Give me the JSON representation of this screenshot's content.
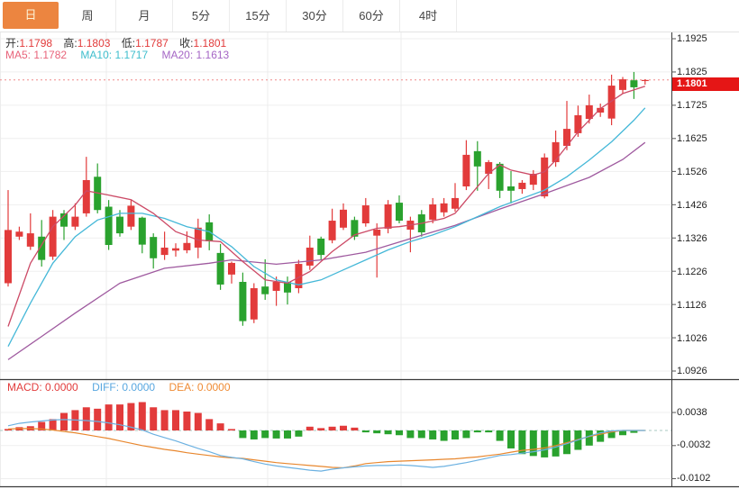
{
  "tabbar": {
    "tabs": [
      {
        "label": "日",
        "active": true
      },
      {
        "label": "周",
        "active": false
      },
      {
        "label": "月",
        "active": false
      },
      {
        "label": "5分",
        "active": false
      },
      {
        "label": "15分",
        "active": false
      },
      {
        "label": "30分",
        "active": false
      },
      {
        "label": "60分",
        "active": false
      },
      {
        "label": "4时",
        "active": false
      }
    ]
  },
  "info": {
    "open_label": "开:",
    "open": "1.1798",
    "high_label": "高:",
    "high": "1.1803",
    "low_label": "低:",
    "low": "1.1787",
    "close_label": "收:",
    "close": "1.1801"
  },
  "ma_info": {
    "ma5_label": "MA5:",
    "ma5": "1.1782",
    "ma10_label": "MA10:",
    "ma10": "1.1717",
    "ma20_label": "MA20:",
    "ma20": "1.1613"
  },
  "macd_info": {
    "macd_label": "MACD:",
    "macd": "0.0000",
    "diff_label": "DIFF:",
    "diff": "0.0000",
    "dea_label": "DEA:",
    "dea": "0.0000"
  },
  "price_axis": {
    "labels": [
      "1.1925",
      "1.1825",
      "1.1725",
      "1.1625",
      "1.1526",
      "1.1426",
      "1.1326",
      "1.1226",
      "1.1126",
      "1.1026",
      "1.0926"
    ],
    "last_price": "1.1801"
  },
  "macd_axis": {
    "labels": [
      "0.0038",
      "-0.0032",
      "-0.0102"
    ]
  },
  "colors": {
    "up": "#e23b3b",
    "down": "#2aa22e",
    "ma5_line": "#cc4a66",
    "ma10_line": "#45b8d8",
    "ma20_line": "#9f5a9f",
    "diff_line": "#6cb1e1",
    "dea_line": "#e8872e",
    "grid": "#efefef",
    "vgrid": "#ececec",
    "axis": "#3a3a3a",
    "tick": "#555555",
    "current_price_line": "#ef8a8a",
    "zero_dash": "#a8c8c0",
    "tab_accent": "#ec8540",
    "badge_bg": "#e51616"
  },
  "chart_data": {
    "type": "candlestick",
    "title": "",
    "price_ylim": [
      1.0926,
      1.1925
    ],
    "price_ticks": [
      1.1925,
      1.1825,
      1.1725,
      1.1625,
      1.1526,
      1.1426,
      1.1326,
      1.1226,
      1.1126,
      1.1026,
      1.0926
    ],
    "current_price": 1.1801,
    "ohlc_last": {
      "open": 1.1798,
      "high": 1.1803,
      "low": 1.1787,
      "close": 1.1801
    },
    "ma_last": {
      "ma5": 1.1782,
      "ma10": 1.1717,
      "ma20": 1.1613
    },
    "time_gridlines_x": [
      118,
      297,
      445
    ],
    "candles": [
      [
        1.119,
        1.147,
        1.118,
        1.135
      ],
      [
        1.133,
        1.136,
        1.132,
        1.1345
      ],
      [
        1.13,
        1.14,
        1.129,
        1.134
      ],
      [
        1.133,
        1.138,
        1.124,
        1.126
      ],
      [
        1.127,
        1.141,
        1.126,
        1.139
      ],
      [
        1.14,
        1.141,
        1.132,
        1.136
      ],
      [
        1.136,
        1.143,
        1.135,
        1.139
      ],
      [
        1.14,
        1.157,
        1.139,
        1.15
      ],
      [
        1.151,
        1.155,
        1.14,
        1.141
      ],
      [
        1.142,
        1.144,
        1.129,
        1.1305
      ],
      [
        1.139,
        1.141,
        1.133,
        1.134
      ],
      [
        1.136,
        1.144,
        1.135,
        1.1423
      ],
      [
        1.1387,
        1.139,
        1.128,
        1.1306
      ],
      [
        1.1329,
        1.134,
        1.1234,
        1.1265
      ],
      [
        1.1275,
        1.1345,
        1.126,
        1.1297
      ],
      [
        1.1288,
        1.131,
        1.127,
        1.1295
      ],
      [
        1.1289,
        1.1346,
        1.128,
        1.1311
      ],
      [
        1.1297,
        1.1384,
        1.1265,
        1.1357
      ],
      [
        1.1373,
        1.1397,
        1.1289,
        1.1316
      ],
      [
        1.1281,
        1.1308,
        1.117,
        1.1186
      ],
      [
        1.1216,
        1.1255,
        1.1189,
        1.1251
      ],
      [
        1.1194,
        1.1222,
        1.1062,
        1.1076
      ],
      [
        1.1081,
        1.119,
        1.107,
        1.1175
      ],
      [
        1.118,
        1.1262,
        1.114,
        1.1157
      ],
      [
        1.1167,
        1.121,
        1.1122,
        1.1194
      ],
      [
        1.1194,
        1.121,
        1.1126,
        1.1162
      ],
      [
        1.1175,
        1.126,
        1.116,
        1.1248
      ],
      [
        1.1243,
        1.1333,
        1.123,
        1.1297
      ],
      [
        1.1324,
        1.133,
        1.126,
        1.1275
      ],
      [
        1.1319,
        1.1414,
        1.131,
        1.1378
      ],
      [
        1.1357,
        1.143,
        1.135,
        1.1411
      ],
      [
        1.138,
        1.139,
        1.132,
        1.133
      ],
      [
        1.137,
        1.1446,
        1.136,
        1.1424
      ],
      [
        1.1333,
        1.137,
        1.1207,
        1.1351
      ],
      [
        1.1354,
        1.144,
        1.134,
        1.1427
      ],
      [
        1.1432,
        1.1454,
        1.137,
        1.1378
      ],
      [
        1.1351,
        1.139,
        1.1283,
        1.1378
      ],
      [
        1.1397,
        1.141,
        1.133,
        1.1343
      ],
      [
        1.1381,
        1.1446,
        1.137,
        1.1427
      ],
      [
        1.1403,
        1.1446,
        1.139,
        1.143
      ],
      [
        1.1414,
        1.1491,
        1.1405,
        1.1446
      ],
      [
        1.1481,
        1.162,
        1.147,
        1.1576
      ],
      [
        1.1587,
        1.1617,
        1.1468,
        1.1541
      ],
      [
        1.1519,
        1.156,
        1.1473,
        1.1554
      ],
      [
        1.1549,
        1.1554,
        1.1446,
        1.1468
      ],
      [
        1.1481,
        1.1527,
        1.143,
        1.1468
      ],
      [
        1.1473,
        1.15,
        1.1459,
        1.1492
      ],
      [
        1.1486,
        1.153,
        1.147,
        1.1519
      ],
      [
        1.1451,
        1.158,
        1.1445,
        1.1568
      ],
      [
        1.1554,
        1.1649,
        1.154,
        1.1614
      ],
      [
        1.1603,
        1.1738,
        1.159,
        1.1654
      ],
      [
        1.1641,
        1.1724,
        1.163,
        1.1695
      ],
      [
        1.1684,
        1.1757,
        1.167,
        1.1725
      ],
      [
        1.1703,
        1.173,
        1.169,
        1.1717
      ],
      [
        1.1685,
        1.1817,
        1.1665,
        1.1784
      ],
      [
        1.1771,
        1.181,
        1.176,
        1.1803
      ],
      [
        1.18,
        1.1825,
        1.1744,
        1.1779
      ],
      [
        1.1798,
        1.1803,
        1.1787,
        1.1801
      ]
    ],
    "ma5_points": [
      [
        0,
        1.106
      ],
      [
        2,
        1.125
      ],
      [
        4,
        1.136
      ],
      [
        6,
        1.1425
      ],
      [
        7,
        1.1468
      ],
      [
        9,
        1.1455
      ],
      [
        11,
        1.1441
      ],
      [
        13,
        1.14
      ],
      [
        15,
        1.1345
      ],
      [
        17,
        1.132
      ],
      [
        19,
        1.1315
      ],
      [
        21,
        1.1255
      ],
      [
        23,
        1.12
      ],
      [
        25,
        1.119
      ],
      [
        27,
        1.1225
      ],
      [
        29,
        1.1285
      ],
      [
        31,
        1.1335
      ],
      [
        33,
        1.1355
      ],
      [
        35,
        1.136
      ],
      [
        37,
        1.137
      ],
      [
        39,
        1.1385
      ],
      [
        40,
        1.14
      ],
      [
        41,
        1.144
      ],
      [
        43,
        1.152
      ],
      [
        44,
        1.1546
      ],
      [
        45,
        1.153
      ],
      [
        47,
        1.1515
      ],
      [
        48,
        1.1525
      ],
      [
        49,
        1.156
      ],
      [
        51,
        1.1645
      ],
      [
        53,
        1.1715
      ],
      [
        55,
        1.176
      ],
      [
        57,
        1.1782
      ]
    ],
    "ma10_points": [
      [
        0,
        1.1
      ],
      [
        2,
        1.113
      ],
      [
        4,
        1.125
      ],
      [
        6,
        1.133
      ],
      [
        8,
        1.138
      ],
      [
        10,
        1.14
      ],
      [
        12,
        1.14
      ],
      [
        14,
        1.1385
      ],
      [
        16,
        1.136
      ],
      [
        18,
        1.1345
      ],
      [
        20,
        1.13
      ],
      [
        22,
        1.124
      ],
      [
        24,
        1.12
      ],
      [
        26,
        1.1185
      ],
      [
        28,
        1.12
      ],
      [
        30,
        1.123
      ],
      [
        32,
        1.126
      ],
      [
        34,
        1.129
      ],
      [
        36,
        1.1315
      ],
      [
        38,
        1.1335
      ],
      [
        40,
        1.136
      ],
      [
        42,
        1.139
      ],
      [
        44,
        1.142
      ],
      [
        46,
        1.1445
      ],
      [
        48,
        1.147
      ],
      [
        50,
        1.151
      ],
      [
        52,
        1.156
      ],
      [
        54,
        1.1615
      ],
      [
        56,
        1.168
      ],
      [
        57,
        1.1717
      ]
    ],
    "ma20_points": [
      [
        0,
        1.096
      ],
      [
        3,
        1.103
      ],
      [
        6,
        1.11
      ],
      [
        10,
        1.119
      ],
      [
        14,
        1.1235
      ],
      [
        18,
        1.125
      ],
      [
        20,
        1.126
      ],
      [
        24,
        1.1247
      ],
      [
        28,
        1.126
      ],
      [
        32,
        1.1283
      ],
      [
        36,
        1.1324
      ],
      [
        40,
        1.1364
      ],
      [
        44,
        1.1413
      ],
      [
        48,
        1.1459
      ],
      [
        52,
        1.1508
      ],
      [
        55,
        1.1562
      ],
      [
        57,
        1.1613
      ]
    ],
    "macd": {
      "ylim": [
        -0.0102,
        0.0038
      ],
      "ticks": [
        0.0038,
        -0.0032,
        -0.0102
      ],
      "hist": [
        0.0003,
        0.0007,
        0.0009,
        0.0018,
        0.0024,
        0.0037,
        0.0043,
        0.0049,
        0.0046,
        0.0055,
        0.0055,
        0.0058,
        0.006,
        0.0049,
        0.0043,
        0.0043,
        0.004,
        0.0037,
        0.0024,
        0.0015,
        0.0003,
        -0.0016,
        -0.0019,
        -0.0016,
        -0.0017,
        -0.0017,
        -0.0013,
        0.0008,
        0.0005,
        0.0008,
        0.001,
        0.0006,
        -0.0004,
        -0.0006,
        -0.0008,
        -0.001,
        -0.0016,
        -0.0016,
        -0.0019,
        -0.0022,
        -0.0019,
        -0.0016,
        -0.0004,
        -0.0004,
        -0.0022,
        -0.0038,
        -0.005,
        -0.0054,
        -0.0057,
        -0.0055,
        -0.005,
        -0.0041,
        -0.0032,
        -0.0024,
        -0.0016,
        -0.001,
        -0.0005,
        0.0
      ],
      "diff": [
        0.001,
        0.0015,
        0.0018,
        0.002,
        0.0022,
        0.0023,
        0.0022,
        0.0021,
        0.0019,
        0.0016,
        0.0012,
        0.0007,
        0.0001,
        -0.0008,
        -0.0015,
        -0.0022,
        -0.003,
        -0.0038,
        -0.0045,
        -0.0053,
        -0.0057,
        -0.006,
        -0.0066,
        -0.0071,
        -0.0075,
        -0.0078,
        -0.0081,
        -0.0084,
        -0.0086,
        -0.0082,
        -0.0079,
        -0.0077,
        -0.0075,
        -0.0074,
        -0.0074,
        -0.0073,
        -0.0074,
        -0.0076,
        -0.0078,
        -0.0076,
        -0.0072,
        -0.0068,
        -0.0063,
        -0.0058,
        -0.0053,
        -0.0051,
        -0.0048,
        -0.0045,
        -0.0041,
        -0.0035,
        -0.0028,
        -0.002,
        -0.0012,
        -0.0005,
        -0.0001,
        0.0,
        0.0,
        0.0
      ],
      "dea": [
        0.0003,
        0.0004,
        0.0004,
        0.0003,
        0.0001,
        -0.0002,
        -0.0005,
        -0.0009,
        -0.0013,
        -0.0017,
        -0.0022,
        -0.0027,
        -0.0032,
        -0.0036,
        -0.004,
        -0.0043,
        -0.0047,
        -0.005,
        -0.0053,
        -0.0056,
        -0.0058,
        -0.0059,
        -0.0062,
        -0.0065,
        -0.0068,
        -0.007,
        -0.0072,
        -0.0074,
        -0.0076,
        -0.0078,
        -0.0079,
        -0.0075,
        -0.007,
        -0.0068,
        -0.0066,
        -0.0065,
        -0.0064,
        -0.0063,
        -0.0062,
        -0.0061,
        -0.006,
        -0.0058,
        -0.0056,
        -0.0053,
        -0.005,
        -0.0046,
        -0.0042,
        -0.004,
        -0.0037,
        -0.0032,
        -0.0026,
        -0.0019,
        -0.0013,
        -0.0008,
        -0.0003,
        0.0,
        0.0,
        0.0
      ]
    }
  }
}
